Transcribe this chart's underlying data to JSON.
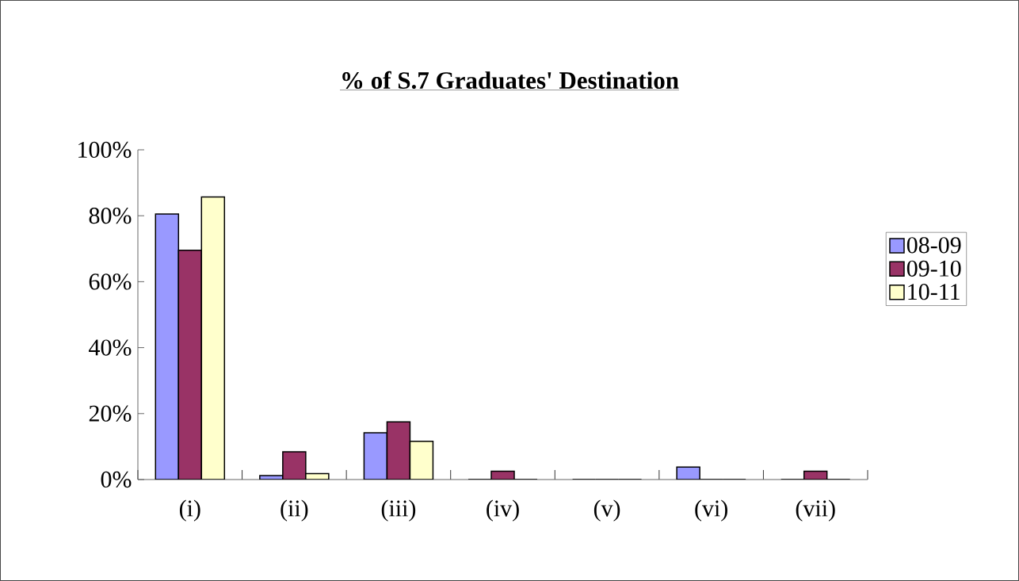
{
  "chart_data": {
    "type": "bar",
    "title": "% of S.7 Graduates' Destination",
    "categories": [
      "(i)",
      "(ii)",
      "(iii)",
      "(iv)",
      "(v)",
      "(vi)",
      "(vii)"
    ],
    "series": [
      {
        "name": "08-09",
        "color": "#9999ff",
        "values": [
          80.5,
          1.2,
          14.2,
          0,
          0,
          3.8,
          0
        ]
      },
      {
        "name": "09-10",
        "color": "#993366",
        "values": [
          69.5,
          8.4,
          17.5,
          2.5,
          0,
          0,
          2.5
        ]
      },
      {
        "name": "10-11",
        "color": "#ffffcc",
        "values": [
          85.7,
          1.8,
          11.6,
          0,
          0,
          0,
          0
        ]
      }
    ],
    "ylim": [
      0,
      100
    ],
    "yticks": [
      {
        "value": 0,
        "label": "0%"
      },
      {
        "value": 20,
        "label": "20%"
      },
      {
        "value": 40,
        "label": "40%"
      },
      {
        "value": 60,
        "label": "60%"
      },
      {
        "value": 80,
        "label": "80%"
      },
      {
        "value": 100,
        "label": "100%"
      }
    ],
    "grid": false,
    "legend": "right"
  }
}
